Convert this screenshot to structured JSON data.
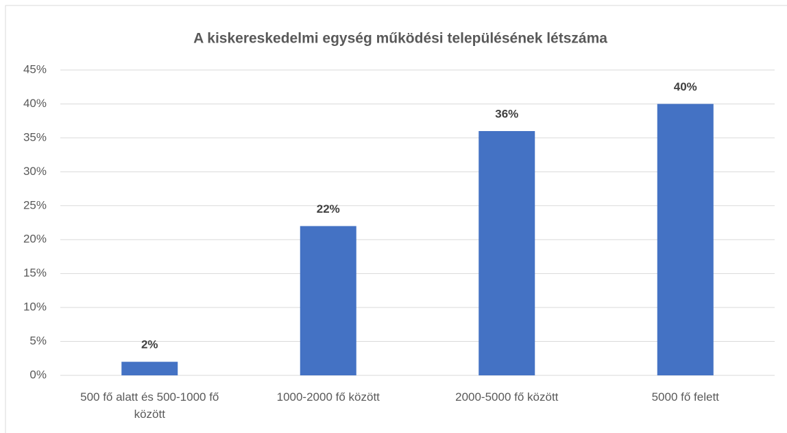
{
  "chart_data": {
    "type": "bar",
    "title": "A kiskereskedelmi egység működési településének létszáma",
    "categories": [
      "500 fő alatt és 500-1000 fő között",
      "1000-2000 fő között",
      "2000-5000 fő között",
      "5000 fő felett"
    ],
    "values": [
      2,
      22,
      36,
      40
    ],
    "value_labels": [
      "2%",
      "22%",
      "36%",
      "40%"
    ],
    "color": "#4472c4",
    "ylim": [
      0,
      45
    ],
    "yticks": [
      {
        "value": 0,
        "label": "0%"
      },
      {
        "value": 5,
        "label": "5%"
      },
      {
        "value": 10,
        "label": "10%"
      },
      {
        "value": 15,
        "label": "15%"
      },
      {
        "value": 20,
        "label": "20%"
      },
      {
        "value": 25,
        "label": "25%"
      },
      {
        "value": 30,
        "label": "30%"
      },
      {
        "value": 35,
        "label": "35%"
      },
      {
        "value": 40,
        "label": "40%"
      },
      {
        "value": 45,
        "label": "45%"
      }
    ],
    "grid": true
  }
}
